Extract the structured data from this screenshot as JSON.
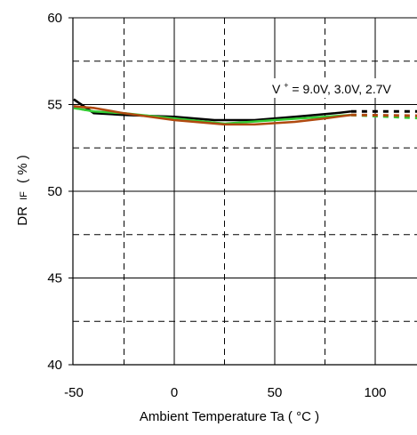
{
  "chart_data": {
    "type": "line",
    "title": "",
    "xlabel": "Ambient Temperature Ta ( °C )",
    "ylabel": {
      "main": "DR",
      "sub": "IF",
      "unit": "( % )"
    },
    "xlim": [
      -50,
      125
    ],
    "ylim": [
      40,
      60
    ],
    "x_ticks": [
      -50,
      0,
      50,
      100
    ],
    "y_ticks": [
      40,
      45,
      50,
      55,
      60
    ],
    "x_tick_labels": [
      "-50",
      "0",
      "50",
      "100"
    ],
    "y_tick_labels": [
      "40",
      "45",
      "50",
      "55",
      "60"
    ],
    "grid": {
      "solid_x": [
        0,
        50,
        100
      ],
      "dashed_x": [
        -25,
        25,
        75
      ],
      "solid_y": [
        45,
        50,
        55
      ],
      "dashed_y": [
        42.5,
        47.5,
        52.5,
        57.5
      ]
    },
    "annotation": {
      "prefix": "V",
      "superscript": "+",
      "text": "= 9.0V, 3.0V, 2.7V"
    },
    "series": [
      {
        "color": "#000000",
        "points": [
          [
            -50,
            55.3
          ],
          [
            -40,
            54.5
          ],
          [
            -25,
            54.4
          ],
          [
            0,
            54.3
          ],
          [
            20,
            54.1
          ],
          [
            40,
            54.1
          ],
          [
            60,
            54.3
          ],
          [
            80,
            54.5
          ],
          [
            88,
            54.6
          ]
        ],
        "dashed_start": [
          [
            -50,
            55.3
          ],
          [
            -40,
            54.5
          ]
        ],
        "dashed_end": [
          [
            88,
            54.6
          ],
          [
            125,
            54.6
          ]
        ]
      },
      {
        "color": "#33cc33",
        "points": [
          [
            -50,
            54.8
          ],
          [
            -40,
            54.6
          ],
          [
            -25,
            54.5
          ],
          [
            0,
            54.2
          ],
          [
            25,
            53.9
          ],
          [
            50,
            54.1
          ],
          [
            75,
            54.3
          ],
          [
            88,
            54.4
          ]
        ],
        "dashed_start": [
          [
            -50,
            54.8
          ],
          [
            -40,
            54.6
          ]
        ],
        "dashed_end": [
          [
            88,
            54.4
          ],
          [
            125,
            54.2
          ]
        ]
      },
      {
        "color": "#b04a10",
        "points": [
          [
            -50,
            54.9
          ],
          [
            -40,
            54.8
          ],
          [
            -25,
            54.5
          ],
          [
            0,
            54.1
          ],
          [
            25,
            53.85
          ],
          [
            40,
            53.85
          ],
          [
            60,
            54.0
          ],
          [
            75,
            54.2
          ],
          [
            88,
            54.4
          ]
        ],
        "dashed_start": [
          [
            -50,
            54.9
          ],
          [
            -40,
            54.8
          ]
        ],
        "dashed_end": [
          [
            88,
            54.4
          ],
          [
            125,
            54.35
          ]
        ]
      }
    ]
  }
}
